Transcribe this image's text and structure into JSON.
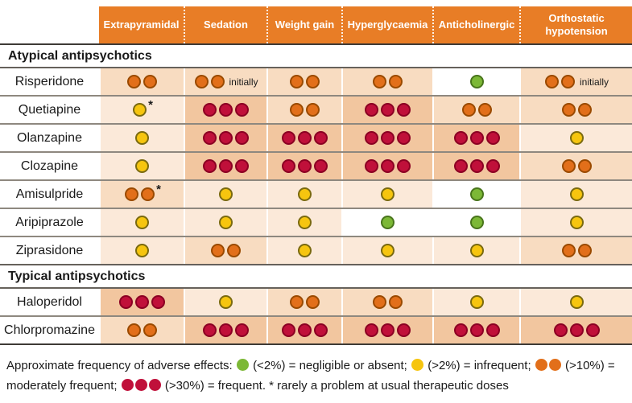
{
  "colors": {
    "header_bg": "#E87D26",
    "header_text": "#FFFFFF",
    "dot_red": "#C0103A",
    "dot_orange": "#E26F1A",
    "dot_yellow": "#F6C50F",
    "dot_green": "#7CB836",
    "cell_bg_red": "#F2C69F",
    "cell_bg_orange": "#F8DCC1",
    "cell_bg_yellow": "#FBE9D9",
    "cell_bg_green": "#FFFFFF"
  },
  "chart_data": {
    "type": "table",
    "columns": [
      "Extrapyramidal",
      "Sedation",
      "Weight gain",
      "Hyperglycaemia",
      "Anticholinergic",
      "Orthostatic hypotension"
    ],
    "sections": [
      {
        "label": "Atypical antipsychotics",
        "rows": [
          {
            "drug": "Risperidone",
            "cells": [
              {
                "dots": 2,
                "color": "orange",
                "note": ""
              },
              {
                "dots": 2,
                "color": "orange",
                "note": "initially"
              },
              {
                "dots": 2,
                "color": "orange",
                "note": ""
              },
              {
                "dots": 2,
                "color": "orange",
                "note": ""
              },
              {
                "dots": 1,
                "color": "green",
                "note": ""
              },
              {
                "dots": 2,
                "color": "orange",
                "note": "initially"
              }
            ]
          },
          {
            "drug": "Quetiapine",
            "cells": [
              {
                "dots": 1,
                "color": "yellow",
                "note": "*"
              },
              {
                "dots": 3,
                "color": "red",
                "note": ""
              },
              {
                "dots": 2,
                "color": "orange",
                "note": ""
              },
              {
                "dots": 3,
                "color": "red",
                "note": ""
              },
              {
                "dots": 2,
                "color": "orange",
                "note": ""
              },
              {
                "dots": 2,
                "color": "orange",
                "note": ""
              }
            ]
          },
          {
            "drug": "Olanzapine",
            "cells": [
              {
                "dots": 1,
                "color": "yellow",
                "note": ""
              },
              {
                "dots": 3,
                "color": "red",
                "note": ""
              },
              {
                "dots": 3,
                "color": "red",
                "note": ""
              },
              {
                "dots": 3,
                "color": "red",
                "note": ""
              },
              {
                "dots": 3,
                "color": "red",
                "note": ""
              },
              {
                "dots": 1,
                "color": "yellow",
                "note": ""
              }
            ]
          },
          {
            "drug": "Clozapine",
            "cells": [
              {
                "dots": 1,
                "color": "yellow",
                "note": ""
              },
              {
                "dots": 3,
                "color": "red",
                "note": ""
              },
              {
                "dots": 3,
                "color": "red",
                "note": ""
              },
              {
                "dots": 3,
                "color": "red",
                "note": ""
              },
              {
                "dots": 3,
                "color": "red",
                "note": ""
              },
              {
                "dots": 2,
                "color": "orange",
                "note": ""
              }
            ]
          },
          {
            "drug": "Amisulpride",
            "cells": [
              {
                "dots": 2,
                "color": "orange",
                "note": "*"
              },
              {
                "dots": 1,
                "color": "yellow",
                "note": ""
              },
              {
                "dots": 1,
                "color": "yellow",
                "note": ""
              },
              {
                "dots": 1,
                "color": "yellow",
                "note": ""
              },
              {
                "dots": 1,
                "color": "green",
                "note": ""
              },
              {
                "dots": 1,
                "color": "yellow",
                "note": ""
              }
            ]
          },
          {
            "drug": "Aripiprazole",
            "cells": [
              {
                "dots": 1,
                "color": "yellow",
                "note": ""
              },
              {
                "dots": 1,
                "color": "yellow",
                "note": ""
              },
              {
                "dots": 1,
                "color": "yellow",
                "note": ""
              },
              {
                "dots": 1,
                "color": "green",
                "note": ""
              },
              {
                "dots": 1,
                "color": "green",
                "note": ""
              },
              {
                "dots": 1,
                "color": "yellow",
                "note": ""
              }
            ]
          },
          {
            "drug": "Ziprasidone",
            "cells": [
              {
                "dots": 1,
                "color": "yellow",
                "note": ""
              },
              {
                "dots": 2,
                "color": "orange",
                "note": ""
              },
              {
                "dots": 1,
                "color": "yellow",
                "note": ""
              },
              {
                "dots": 1,
                "color": "yellow",
                "note": ""
              },
              {
                "dots": 1,
                "color": "yellow",
                "note": ""
              },
              {
                "dots": 2,
                "color": "orange",
                "note": ""
              }
            ]
          }
        ]
      },
      {
        "label": "Typical antipsychotics",
        "rows": [
          {
            "drug": "Haloperidol",
            "cells": [
              {
                "dots": 3,
                "color": "red",
                "note": ""
              },
              {
                "dots": 1,
                "color": "yellow",
                "note": ""
              },
              {
                "dots": 2,
                "color": "orange",
                "note": ""
              },
              {
                "dots": 2,
                "color": "orange",
                "note": ""
              },
              {
                "dots": 1,
                "color": "yellow",
                "note": ""
              },
              {
                "dots": 1,
                "color": "yellow",
                "note": ""
              }
            ]
          },
          {
            "drug": "Chlorpromazine",
            "cells": [
              {
                "dots": 2,
                "color": "orange",
                "note": ""
              },
              {
                "dots": 3,
                "color": "red",
                "note": ""
              },
              {
                "dots": 3,
                "color": "red",
                "note": ""
              },
              {
                "dots": 3,
                "color": "red",
                "note": ""
              },
              {
                "dots": 3,
                "color": "red",
                "note": ""
              },
              {
                "dots": 3,
                "color": "red",
                "note": ""
              }
            ]
          }
        ]
      }
    ],
    "legend": {
      "prefix": "Approximate frequency of adverse effects:",
      "items": [
        {
          "dots": 1,
          "color": "green",
          "text": "(<2%) = negligible or absent;"
        },
        {
          "dots": 1,
          "color": "yellow",
          "text": "(>2%) = infrequent;"
        },
        {
          "dots": 2,
          "color": "orange",
          "text": "(>10%) = moderately frequent;"
        },
        {
          "dots": 3,
          "color": "red",
          "text": "(>30%) = frequent."
        }
      ],
      "footnote": "* rarely a problem at usual therapeutic doses"
    }
  }
}
